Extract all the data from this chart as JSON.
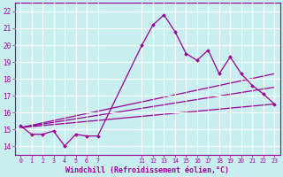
{
  "xlabel": "Windchill (Refroidissement éolien,°C)",
  "background_color": "#c8eef0",
  "grid_color": "#ffffff",
  "line_color": "#990099",
  "x_ticks_labels": [
    0,
    1,
    2,
    3,
    4,
    5,
    6,
    7,
    11,
    12,
    13,
    14,
    15,
    16,
    17,
    18,
    19,
    20,
    21,
    22,
    23
  ],
  "ylim": [
    13.5,
    22.5
  ],
  "yticks": [
    14,
    15,
    16,
    17,
    18,
    19,
    20,
    21,
    22
  ],
  "xlim": [
    -0.5,
    23.5
  ],
  "line1_x": [
    0,
    1,
    2,
    3,
    4,
    5,
    6,
    7,
    11,
    12,
    13,
    14,
    15,
    16,
    17,
    18,
    19,
    20,
    21,
    22,
    23
  ],
  "line1_y": [
    15.2,
    14.7,
    14.7,
    14.9,
    14.0,
    14.7,
    14.6,
    14.6,
    20.0,
    21.2,
    21.8,
    20.8,
    19.5,
    19.1,
    19.7,
    18.3,
    19.3,
    18.3,
    17.6,
    17.1,
    16.5
  ],
  "fan_lines": [
    {
      "x": [
        0,
        23
      ],
      "y": [
        15.1,
        18.3
      ]
    },
    {
      "x": [
        0,
        23
      ],
      "y": [
        15.1,
        17.5
      ]
    },
    {
      "x": [
        0,
        23
      ],
      "y": [
        15.1,
        16.5
      ]
    }
  ]
}
